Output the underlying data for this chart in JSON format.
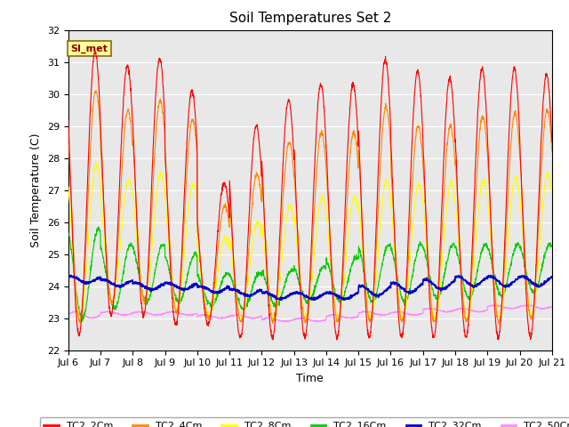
{
  "title": "Soil Temperatures Set 2",
  "ylabel": "Soil Temperature (C)",
  "xlabel": "Time",
  "annotation": "SI_met",
  "ylim": [
    22.0,
    32.0
  ],
  "yticks": [
    22.0,
    23.0,
    24.0,
    25.0,
    26.0,
    27.0,
    28.0,
    29.0,
    30.0,
    31.0,
    32.0
  ],
  "xtick_labels": [
    "Jul 6",
    "Jul 7",
    "Jul 8",
    "Jul 9",
    "Jul 10",
    "Jul 11",
    "Jul 12",
    "Jul 13",
    "Jul 14",
    "Jul 15",
    "Jul 16",
    "Jul 17",
    "Jul 18",
    "Jul 19",
    "Jul 20",
    "Jul 21"
  ],
  "series": {
    "TC2_2Cm": {
      "color": "#FF0000",
      "linewidth": 0.8
    },
    "TC2_4Cm": {
      "color": "#FF8800",
      "linewidth": 0.8
    },
    "TC2_8Cm": {
      "color": "#FFFF00",
      "linewidth": 0.8
    },
    "TC2_16Cm": {
      "color": "#00CC00",
      "linewidth": 0.8
    },
    "TC2_32Cm": {
      "color": "#0000CC",
      "linewidth": 1.2
    },
    "TC2_50Cm": {
      "color": "#FF88FF",
      "linewidth": 0.8
    }
  },
  "background_color": "#E8E8E8",
  "title_fontsize": 11,
  "axis_label_fontsize": 9,
  "tick_fontsize": 8,
  "legend_fontsize": 8
}
